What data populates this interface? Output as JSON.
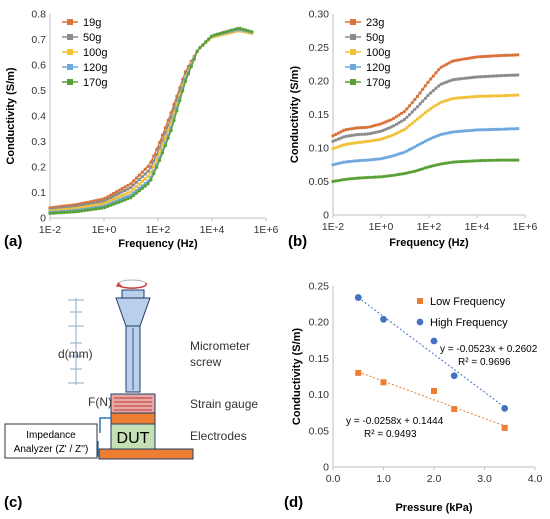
{
  "panels": {
    "a": "(a)",
    "b": "(b)",
    "c": "(c)",
    "d": "(d)"
  },
  "chart_data": [
    {
      "id": "a",
      "type": "line",
      "xscale": "log",
      "xlabel": "Frequency (Hz)",
      "ylabel": "Conductivity (S/m)",
      "xlim": [
        0.01,
        1000000
      ],
      "ylim": [
        0,
        0.8
      ],
      "xticks": [
        "1E-2",
        "1E+0",
        "1E+2",
        "1E+4",
        "1E+6"
      ],
      "yticks": [
        "0",
        "0.1",
        "0.2",
        "0.3",
        "0.4",
        "0.5",
        "0.6",
        "0.7",
        "0.8"
      ],
      "legend_position": "top-left",
      "x": [
        0.01,
        0.1,
        1,
        10,
        50,
        100,
        300,
        1000,
        3000,
        10000,
        100000,
        300000
      ],
      "series": [
        {
          "name": "19g",
          "color": "#d9733a",
          "values": [
            0.04,
            0.053,
            0.075,
            0.135,
            0.21,
            0.28,
            0.41,
            0.57,
            0.66,
            0.71,
            0.735,
            0.725
          ]
        },
        {
          "name": "50g",
          "color": "#8c8c8c",
          "values": [
            0.034,
            0.046,
            0.066,
            0.12,
            0.19,
            0.26,
            0.39,
            0.56,
            0.66,
            0.71,
            0.735,
            0.725
          ]
        },
        {
          "name": "100g",
          "color": "#f2c13a",
          "values": [
            0.028,
            0.038,
            0.056,
            0.104,
            0.17,
            0.24,
            0.37,
            0.55,
            0.66,
            0.71,
            0.735,
            0.725
          ]
        },
        {
          "name": "120g",
          "color": "#6fa8dc",
          "values": [
            0.022,
            0.03,
            0.046,
            0.09,
            0.15,
            0.22,
            0.35,
            0.54,
            0.66,
            0.715,
            0.74,
            0.73
          ]
        },
        {
          "name": "170g",
          "color": "#5aa037",
          "values": [
            0.018,
            0.025,
            0.04,
            0.08,
            0.14,
            0.21,
            0.34,
            0.53,
            0.66,
            0.715,
            0.745,
            0.73
          ]
        }
      ]
    },
    {
      "id": "b",
      "type": "line",
      "xscale": "log",
      "xlabel": "Frequency (Hz)",
      "ylabel": "Conductivity (S/m)",
      "xlim": [
        0.01,
        1000000
      ],
      "ylim": [
        0,
        0.3
      ],
      "xticks": [
        "1E-2",
        "1E+0",
        "1E+2",
        "1E+4",
        "1E+6"
      ],
      "yticks": [
        "0",
        "0.05",
        "0.10",
        "0.15",
        "0.20",
        "0.25",
        "0.30"
      ],
      "legend_position": "top-left",
      "x": [
        0.01,
        0.03,
        0.1,
        0.3,
        1,
        3,
        10,
        30,
        100,
        300,
        1000,
        10000,
        100000,
        500000
      ],
      "series": [
        {
          "name": "23g",
          "color": "#d9733a",
          "values": [
            0.118,
            0.127,
            0.13,
            0.131,
            0.136,
            0.143,
            0.155,
            0.175,
            0.2,
            0.22,
            0.23,
            0.236,
            0.238,
            0.239
          ]
        },
        {
          "name": "50g",
          "color": "#8c8c8c",
          "values": [
            0.11,
            0.117,
            0.12,
            0.121,
            0.125,
            0.132,
            0.143,
            0.16,
            0.18,
            0.195,
            0.202,
            0.206,
            0.208,
            0.209
          ]
        },
        {
          "name": "100g",
          "color": "#f2c13a",
          "values": [
            0.099,
            0.105,
            0.108,
            0.11,
            0.113,
            0.119,
            0.128,
            0.142,
            0.157,
            0.168,
            0.174,
            0.177,
            0.178,
            0.179
          ]
        },
        {
          "name": "120g",
          "color": "#6fa8dc",
          "values": [
            0.075,
            0.079,
            0.081,
            0.082,
            0.084,
            0.088,
            0.094,
            0.103,
            0.113,
            0.12,
            0.124,
            0.127,
            0.128,
            0.129
          ]
        },
        {
          "name": "170g",
          "color": "#5aa037",
          "values": [
            0.05,
            0.053,
            0.055,
            0.056,
            0.057,
            0.059,
            0.062,
            0.066,
            0.072,
            0.076,
            0.079,
            0.081,
            0.082,
            0.082
          ]
        }
      ]
    },
    {
      "id": "d",
      "type": "scatter",
      "xscale": "linear",
      "xlabel": "Pressure (kPa)",
      "ylabel": "Conductivity (S/m)",
      "xlim": [
        0,
        4
      ],
      "ylim": [
        0,
        0.25
      ],
      "xticks": [
        "0.0",
        "1.0",
        "2.0",
        "3.0",
        "4.0"
      ],
      "yticks": [
        "0",
        "0.05",
        "0.10",
        "0.15",
        "0.20",
        "0.25"
      ],
      "legend_position": "top-right",
      "series": [
        {
          "name": "Low Frequency",
          "color": "#ed7d31",
          "marker": "square",
          "x": [
            0.5,
            1.0,
            2.0,
            2.4,
            3.4
          ],
          "y": [
            0.13,
            0.117,
            0.105,
            0.08,
            0.054
          ],
          "trendline": {
            "slope": -0.0258,
            "intercept": 0.1444
          },
          "equation": "y = -0.0258x + 0.1444",
          "r2": "R² = 0.9493"
        },
        {
          "name": "High Frequency",
          "color": "#4472c4",
          "marker": "circle",
          "x": [
            0.5,
            1.0,
            2.0,
            2.4,
            3.4
          ],
          "y": [
            0.234,
            0.204,
            0.174,
            0.126,
            0.081
          ],
          "trendline": {
            "slope": -0.0523,
            "intercept": 0.2602
          },
          "equation": "y = -0.0523x + 0.2602",
          "r2": "R² = 0.9696"
        }
      ]
    }
  ],
  "diagram": {
    "d_label": "d(mm)",
    "f_label": "F(N)",
    "micrometer": "Micrometer",
    "screw": "screw",
    "strain_gauge": "Strain gauge",
    "electrodes": "Electrodes",
    "dut": "DUT",
    "impedance_line1": "Impedance",
    "impedance_line2": "Analyzer (Z' / Z'')"
  }
}
